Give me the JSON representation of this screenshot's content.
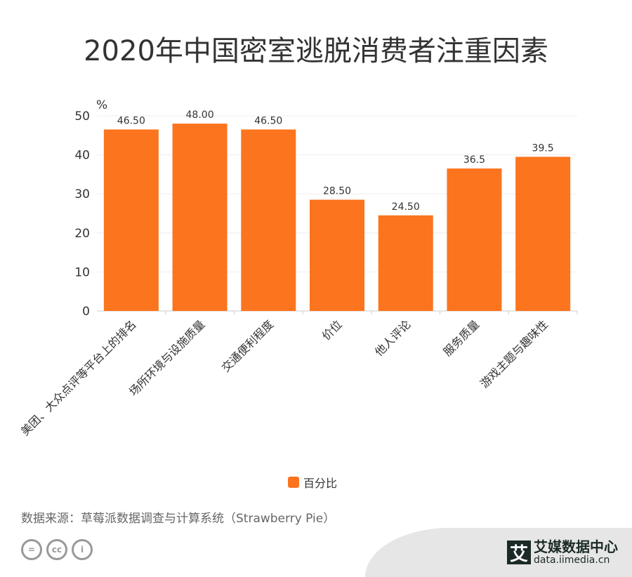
{
  "chart_data": {
    "type": "bar",
    "title": "2020年中国密室逃脱消费者注重因素",
    "ylabel": "%",
    "ylim": [
      0,
      50
    ],
    "yticks": [
      0,
      10,
      20,
      30,
      40,
      50
    ],
    "grid": true,
    "legend_position": "bottom",
    "categories": [
      "美团、大众点评等平台上的排名",
      "场所环境与设施质量",
      "交通便利程度",
      "价位",
      "他人评论",
      "服务质量",
      "游戏主题与趣味性"
    ],
    "series": [
      {
        "name": "百分比",
        "values": [
          46.5,
          48.0,
          46.5,
          28.5,
          24.5,
          36.5,
          39.5
        ],
        "labels": [
          "46.50",
          "48.00",
          "46.50",
          "28.50",
          "24.50",
          "36.5",
          "39.5"
        ],
        "color": "#fc741d"
      }
    ]
  },
  "footer": {
    "source": "数据来源：草莓派数据调查与计算系统（Strawberry Pie）",
    "cc_icons": [
      "equals-icon",
      "cc-icon",
      "person-icon"
    ],
    "logo_mark": "艾",
    "logo_name": "艾媒数据中心",
    "logo_url": "data.iimedia.cn"
  }
}
